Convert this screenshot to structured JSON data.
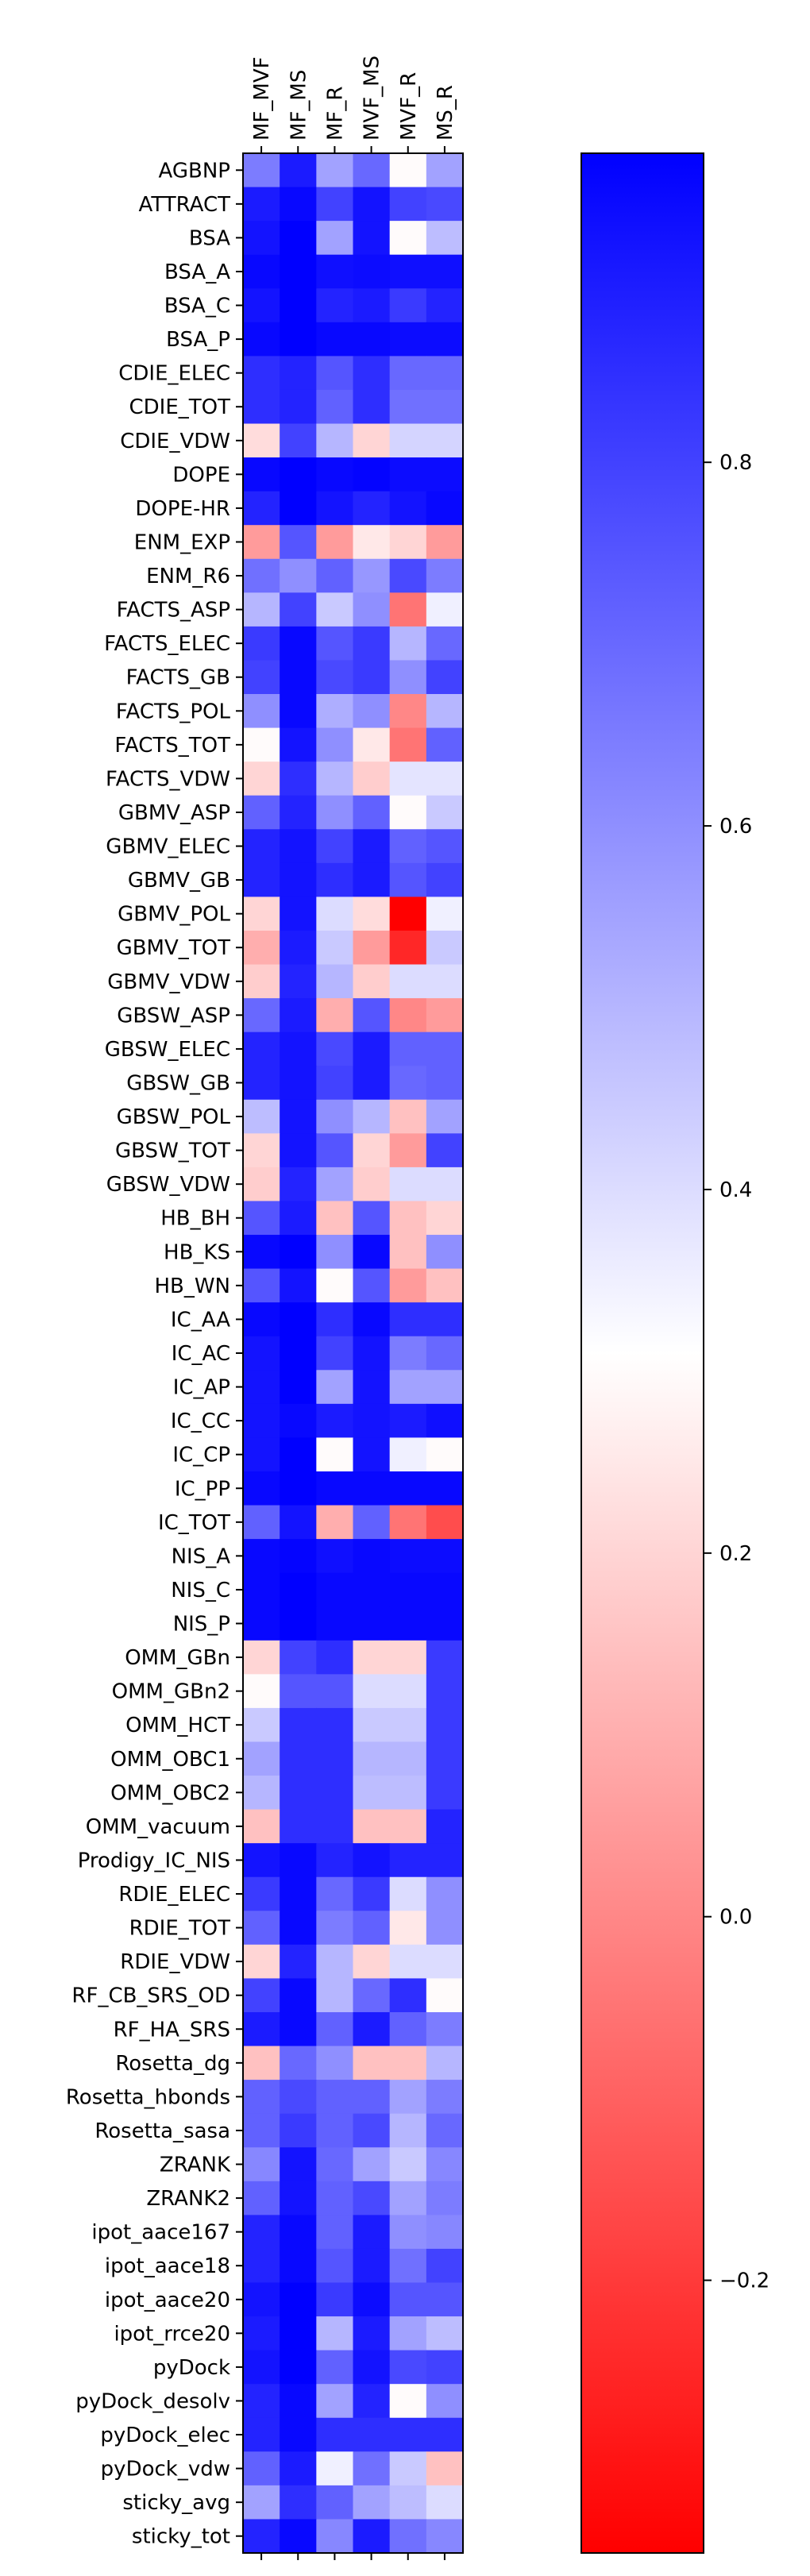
{
  "chart_data": {
    "type": "heatmap",
    "title": "",
    "xlabel": "",
    "ylabel": "",
    "columns": [
      "MF_MVF",
      "MF_MS",
      "MF_R",
      "MVF_MS",
      "MVF_R",
      "MS_R"
    ],
    "rows": [
      "AGBNP",
      "ATTRACT",
      "BSA",
      "BSA_A",
      "BSA_C",
      "BSA_P",
      "CDIE_ELEC",
      "CDIE_TOT",
      "CDIE_VDW",
      "DOPE",
      "DOPE-HR",
      "ENM_EXP",
      "ENM_R6",
      "FACTS_ASP",
      "FACTS_ELEC",
      "FACTS_GB",
      "FACTS_POL",
      "FACTS_TOT",
      "FACTS_VDW",
      "GBMV_ASP",
      "GBMV_ELEC",
      "GBMV_GB",
      "GBMV_POL",
      "GBMV_TOT",
      "GBMV_VDW",
      "GBSW_ASP",
      "GBSW_ELEC",
      "GBSW_GB",
      "GBSW_POL",
      "GBSW_TOT",
      "GBSW_VDW",
      "HB_BH",
      "HB_KS",
      "HB_WN",
      "IC_AA",
      "IC_AC",
      "IC_AP",
      "IC_CC",
      "IC_CP",
      "IC_PP",
      "IC_TOT",
      "NIS_A",
      "NIS_C",
      "NIS_P",
      "OMM_GBn",
      "OMM_GBn2",
      "OMM_HCT",
      "OMM_OBC1",
      "OMM_OBC2",
      "OMM_vacuum",
      "Prodigy_IC_NIS",
      "RDIE_ELEC",
      "RDIE_TOT",
      "RDIE_VDW",
      "RF_CB_SRS_OD",
      "RF_HA_SRS",
      "Rosetta_dg",
      "Rosetta_hbonds",
      "Rosetta_sasa",
      "ZRANK",
      "ZRANK2",
      "ipot_aace167",
      "ipot_aace18",
      "ipot_aace20",
      "ipot_rrce20",
      "pyDock",
      "pyDock_desolv",
      "pyDock_elec",
      "pyDock_vdw",
      "sticky_avg",
      "sticky_tot"
    ],
    "values": [
      [
        0.65,
        0.9,
        0.55,
        0.7,
        0.3,
        0.55
      ],
      [
        0.9,
        0.95,
        0.8,
        0.92,
        0.8,
        0.78
      ],
      [
        0.92,
        0.97,
        0.55,
        0.92,
        0.3,
        0.48
      ],
      [
        0.95,
        0.97,
        0.93,
        0.94,
        0.93,
        0.93
      ],
      [
        0.92,
        0.97,
        0.88,
        0.9,
        0.82,
        0.88
      ],
      [
        0.95,
        0.98,
        0.95,
        0.95,
        0.94,
        0.94
      ],
      [
        0.85,
        0.88,
        0.75,
        0.85,
        0.7,
        0.7
      ],
      [
        0.85,
        0.88,
        0.72,
        0.85,
        0.68,
        0.68
      ],
      [
        0.22,
        0.8,
        0.5,
        0.2,
        0.42,
        0.42
      ],
      [
        0.95,
        0.98,
        0.95,
        0.96,
        0.94,
        0.94
      ],
      [
        0.88,
        0.97,
        0.92,
        0.88,
        0.92,
        0.95
      ],
      [
        0.05,
        0.75,
        0.05,
        0.25,
        0.2,
        0.05
      ],
      [
        0.68,
        0.6,
        0.72,
        0.58,
        0.78,
        0.65
      ],
      [
        0.5,
        0.8,
        0.45,
        0.6,
        -0.05,
        0.35
      ],
      [
        0.82,
        0.95,
        0.75,
        0.82,
        0.5,
        0.7
      ],
      [
        0.8,
        0.95,
        0.78,
        0.82,
        0.6,
        0.8
      ],
      [
        0.6,
        0.95,
        0.52,
        0.6,
        0.0,
        0.5
      ],
      [
        0.3,
        0.92,
        0.6,
        0.25,
        -0.05,
        0.72
      ],
      [
        0.2,
        0.85,
        0.5,
        0.18,
        0.38,
        0.38
      ],
      [
        0.72,
        0.88,
        0.6,
        0.72,
        0.3,
        0.45
      ],
      [
        0.88,
        0.92,
        0.8,
        0.9,
        0.72,
        0.75
      ],
      [
        0.88,
        0.92,
        0.85,
        0.9,
        0.75,
        0.8
      ],
      [
        0.2,
        0.92,
        0.4,
        0.22,
        -0.35,
        0.35
      ],
      [
        0.1,
        0.9,
        0.45,
        0.05,
        -0.25,
        0.45
      ],
      [
        0.18,
        0.88,
        0.5,
        0.18,
        0.4,
        0.4
      ],
      [
        0.7,
        0.9,
        0.1,
        0.75,
        0.0,
        0.05
      ],
      [
        0.88,
        0.92,
        0.78,
        0.9,
        0.72,
        0.72
      ],
      [
        0.88,
        0.92,
        0.8,
        0.9,
        0.7,
        0.72
      ],
      [
        0.48,
        0.92,
        0.6,
        0.5,
        0.15,
        0.55
      ],
      [
        0.2,
        0.92,
        0.75,
        0.2,
        0.05,
        0.8
      ],
      [
        0.18,
        0.88,
        0.55,
        0.18,
        0.4,
        0.4
      ],
      [
        0.75,
        0.9,
        0.15,
        0.75,
        0.15,
        0.2
      ],
      [
        0.95,
        0.97,
        0.6,
        0.95,
        0.15,
        0.6
      ],
      [
        0.75,
        0.92,
        0.3,
        0.75,
        0.05,
        0.15
      ],
      [
        0.95,
        0.97,
        0.85,
        0.95,
        0.85,
        0.85
      ],
      [
        0.92,
        0.97,
        0.8,
        0.92,
        0.65,
        0.7
      ],
      [
        0.92,
        0.97,
        0.55,
        0.92,
        0.55,
        0.55
      ],
      [
        0.92,
        0.95,
        0.9,
        0.92,
        0.9,
        0.93
      ],
      [
        0.92,
        0.97,
        0.3,
        0.92,
        0.35,
        0.3
      ],
      [
        0.95,
        0.97,
        0.95,
        0.95,
        0.95,
        0.95
      ],
      [
        0.72,
        0.92,
        0.1,
        0.72,
        -0.05,
        -0.15
      ],
      [
        0.95,
        0.96,
        0.93,
        0.95,
        0.94,
        0.94
      ],
      [
        0.95,
        0.97,
        0.95,
        0.95,
        0.95,
        0.95
      ],
      [
        0.95,
        0.97,
        0.95,
        0.95,
        0.95,
        0.95
      ],
      [
        0.2,
        0.8,
        0.85,
        0.2,
        0.2,
        0.82
      ],
      [
        0.3,
        0.75,
        0.75,
        0.4,
        0.4,
        0.82
      ],
      [
        0.45,
        0.85,
        0.85,
        0.45,
        0.45,
        0.82
      ],
      [
        0.55,
        0.85,
        0.85,
        0.5,
        0.5,
        0.82
      ],
      [
        0.5,
        0.85,
        0.85,
        0.48,
        0.48,
        0.82
      ],
      [
        0.15,
        0.85,
        0.85,
        0.15,
        0.15,
        0.88
      ],
      [
        0.92,
        0.95,
        0.88,
        0.92,
        0.88,
        0.88
      ],
      [
        0.82,
        0.95,
        0.7,
        0.82,
        0.4,
        0.6
      ],
      [
        0.72,
        0.95,
        0.65,
        0.72,
        0.25,
        0.6
      ],
      [
        0.2,
        0.88,
        0.5,
        0.2,
        0.4,
        0.4
      ],
      [
        0.8,
        0.95,
        0.5,
        0.7,
        0.85,
        0.3
      ],
      [
        0.9,
        0.95,
        0.72,
        0.9,
        0.72,
        0.65
      ],
      [
        0.15,
        0.7,
        0.6,
        0.15,
        0.15,
        0.5
      ],
      [
        0.72,
        0.78,
        0.72,
        0.72,
        0.55,
        0.65
      ],
      [
        0.72,
        0.82,
        0.72,
        0.78,
        0.5,
        0.7
      ],
      [
        0.62,
        0.92,
        0.7,
        0.55,
        0.45,
        0.62
      ],
      [
        0.72,
        0.92,
        0.72,
        0.78,
        0.55,
        0.65
      ],
      [
        0.88,
        0.95,
        0.72,
        0.9,
        0.6,
        0.62
      ],
      [
        0.88,
        0.95,
        0.75,
        0.9,
        0.68,
        0.8
      ],
      [
        0.92,
        0.97,
        0.82,
        0.94,
        0.75,
        0.75
      ],
      [
        0.9,
        0.97,
        0.5,
        0.9,
        0.55,
        0.48
      ],
      [
        0.92,
        0.97,
        0.72,
        0.92,
        0.78,
        0.8
      ],
      [
        0.88,
        0.95,
        0.55,
        0.88,
        0.3,
        0.6
      ],
      [
        0.88,
        0.95,
        0.85,
        0.85,
        0.85,
        0.85
      ],
      [
        0.72,
        0.9,
        0.35,
        0.68,
        0.45,
        0.15
      ],
      [
        0.55,
        0.85,
        0.72,
        0.55,
        0.48,
        0.4
      ],
      [
        0.88,
        0.95,
        0.62,
        0.9,
        0.68,
        0.62
      ]
    ],
    "colorbar": {
      "cmap": "bwr_r",
      "vmin": -0.35,
      "vmax": 0.97,
      "ticks": [
        -0.2,
        0.0,
        0.2,
        0.4,
        0.6,
        0.8
      ],
      "tick_labels": [
        "−0.2",
        "0.0",
        "0.2",
        "0.4",
        "0.6",
        "0.8"
      ]
    }
  }
}
